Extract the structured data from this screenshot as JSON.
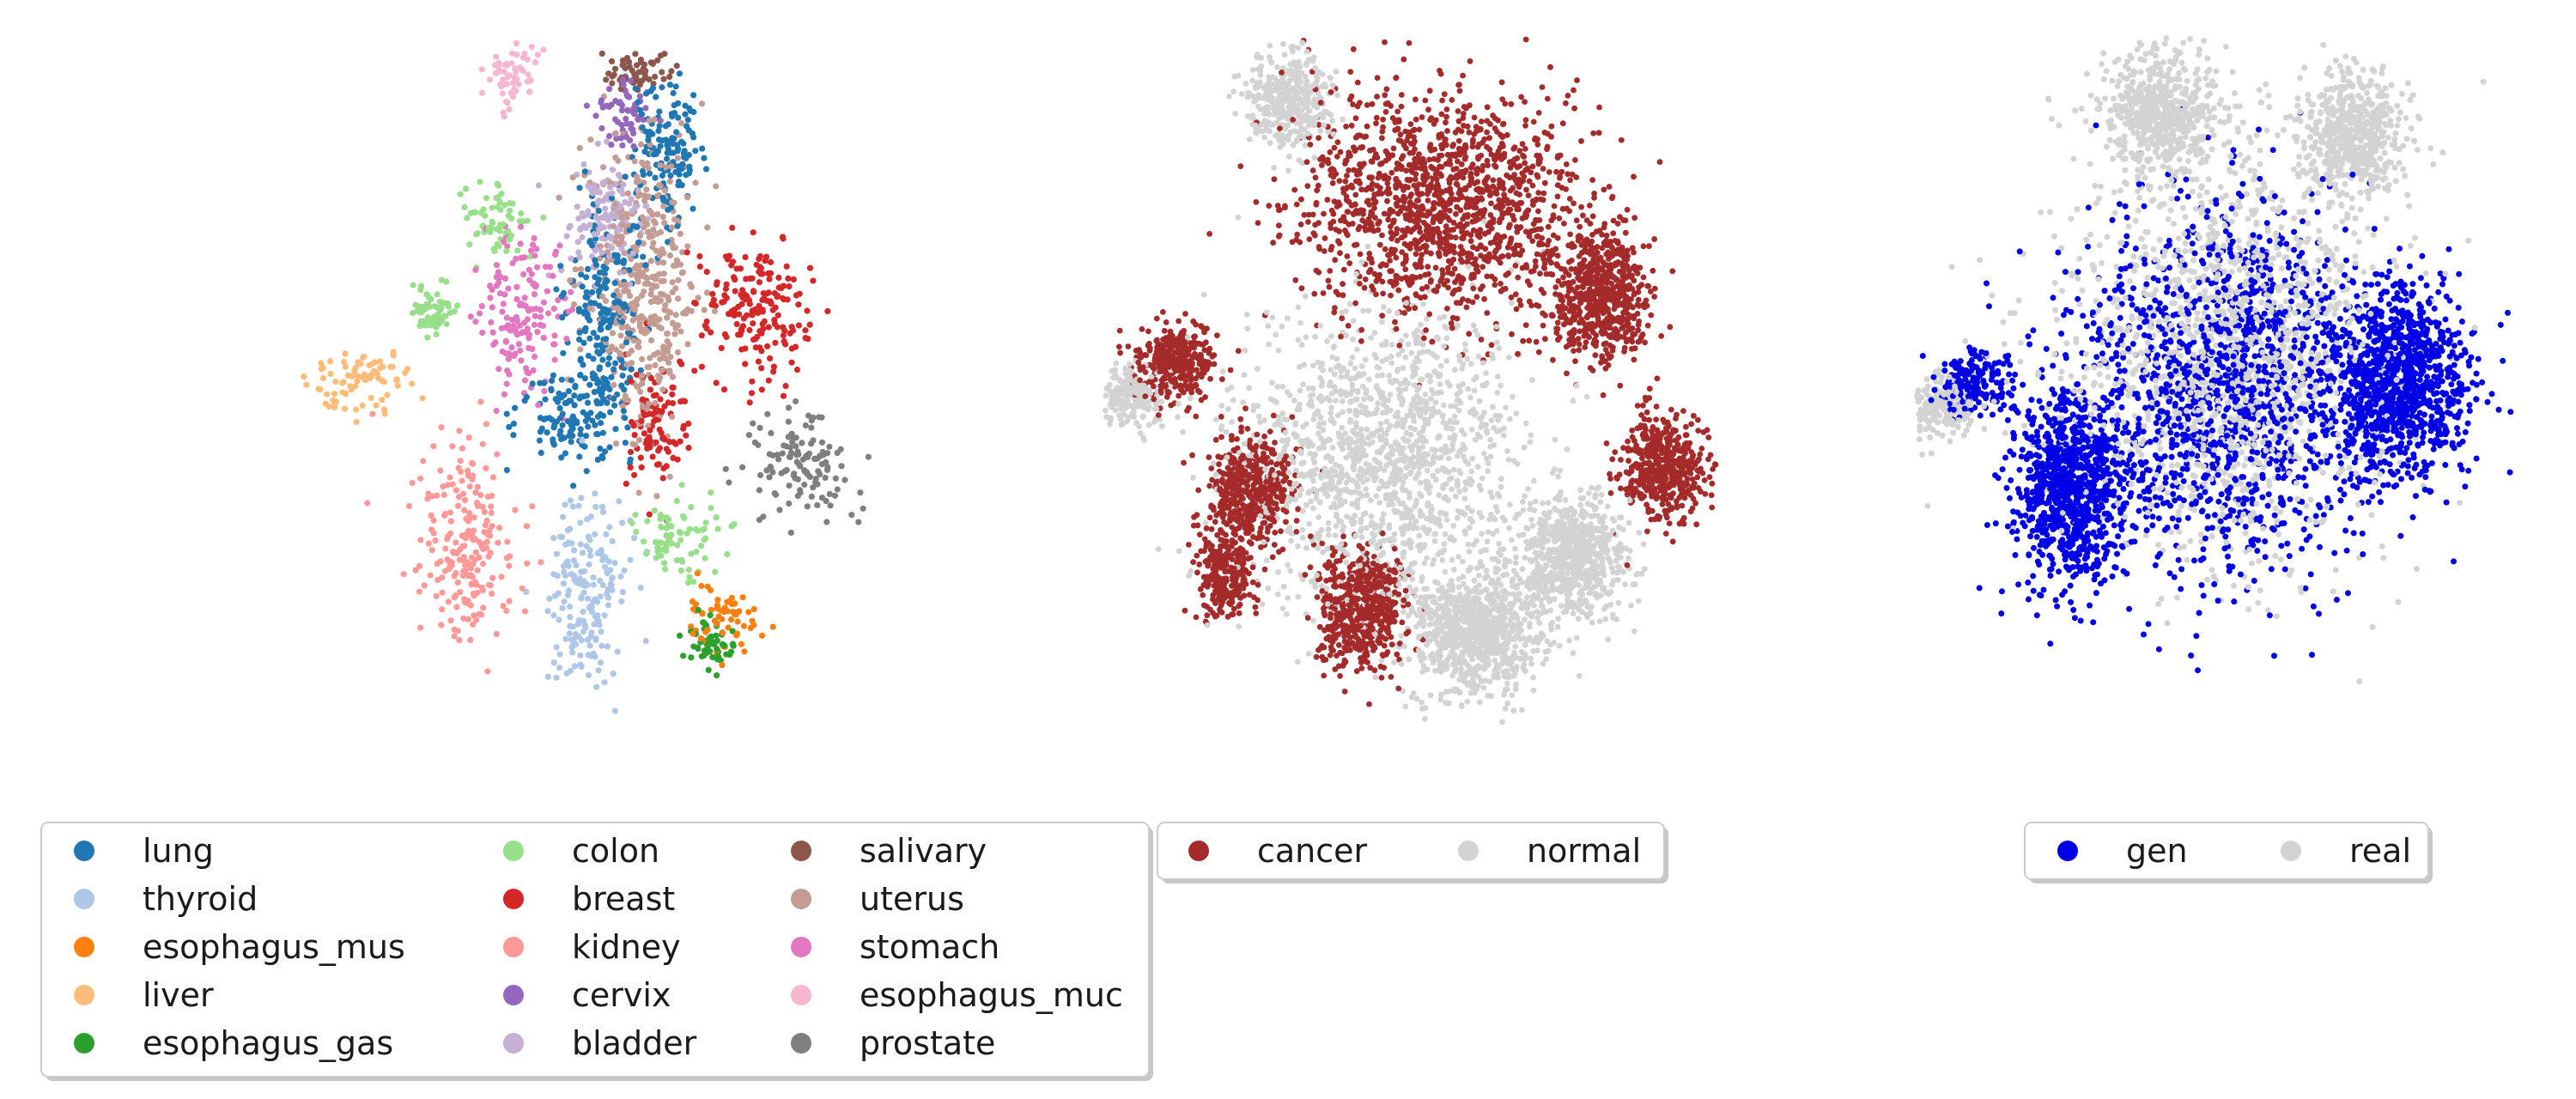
{
  "chart_data": [
    {
      "type": "scatter",
      "panel": "tissue",
      "title": "",
      "xlabel": "",
      "ylabel": "",
      "axes_visible": false,
      "grid": false,
      "legend_position": "bottom",
      "legend_columns": 3,
      "series": [
        {
          "name": "lung",
          "color": "#1f77b4",
          "clusters": [
            [
              0.47,
              0.55,
              0.08,
              0.07
            ],
            [
              0.52,
              0.4,
              0.05,
              0.14
            ],
            [
              0.62,
              0.18,
              0.06,
              0.1
            ]
          ]
        },
        {
          "name": "thyroid",
          "color": "#aec7e8",
          "clusters": [
            [
              0.49,
              0.8,
              0.06,
              0.12
            ]
          ]
        },
        {
          "name": "esophagus_mus",
          "color": "#ff7f0e",
          "clusters": [
            [
              0.71,
              0.84,
              0.05,
              0.05
            ]
          ]
        },
        {
          "name": "liver",
          "color": "#ffbb78",
          "clusters": [
            [
              0.13,
              0.5,
              0.08,
              0.04
            ]
          ]
        },
        {
          "name": "esophagus_gas",
          "color": "#2ca02c",
          "clusters": [
            [
              0.69,
              0.87,
              0.04,
              0.03
            ]
          ]
        },
        {
          "name": "colon",
          "color": "#98df8a",
          "clusters": [
            [
              0.35,
              0.27,
              0.05,
              0.05
            ],
            [
              0.63,
              0.72,
              0.06,
              0.05
            ],
            [
              0.25,
              0.4,
              0.03,
              0.03
            ]
          ]
        },
        {
          "name": "breast",
          "color": "#d62728",
          "clusters": [
            [
              0.76,
              0.4,
              0.08,
              0.09
            ],
            [
              0.6,
              0.55,
              0.05,
              0.08
            ]
          ]
        },
        {
          "name": "kidney",
          "color": "#ff9896",
          "clusters": [
            [
              0.3,
              0.73,
              0.07,
              0.12
            ]
          ]
        },
        {
          "name": "cervix",
          "color": "#9467bd",
          "clusters": [
            [
              0.55,
              0.12,
              0.04,
              0.05
            ]
          ]
        },
        {
          "name": "bladder",
          "color": "#c5b0d5",
          "clusters": [
            [
              0.52,
              0.27,
              0.06,
              0.09
            ]
          ]
        },
        {
          "name": "salivary",
          "color": "#8c564b",
          "clusters": [
            [
              0.57,
              0.06,
              0.05,
              0.03
            ]
          ]
        },
        {
          "name": "uterus",
          "color": "#c49c94",
          "clusters": [
            [
              0.58,
              0.35,
              0.08,
              0.2
            ]
          ]
        },
        {
          "name": "stomach",
          "color": "#e377c2",
          "clusters": [
            [
              0.39,
              0.4,
              0.06,
              0.1
            ]
          ]
        },
        {
          "name": "esophagus_muc",
          "color": "#f7b6d2",
          "clusters": [
            [
              0.37,
              0.07,
              0.04,
              0.05
            ]
          ]
        },
        {
          "name": "prostate",
          "color": "#7f7f7f",
          "clusters": [
            [
              0.84,
              0.62,
              0.07,
              0.07
            ]
          ]
        }
      ]
    },
    {
      "type": "scatter",
      "panel": "condition",
      "title": "",
      "xlabel": "",
      "ylabel": "",
      "axes_visible": false,
      "grid": false,
      "legend_position": "bottom",
      "legend_columns": 2,
      "series": [
        {
          "name": "cancer",
          "color": "#a52a2a",
          "clusters": [
            [
              0.55,
              0.25,
              0.2,
              0.15
            ],
            [
              0.8,
              0.38,
              0.07,
              0.08
            ],
            [
              0.12,
              0.47,
              0.06,
              0.05
            ],
            [
              0.24,
              0.65,
              0.06,
              0.07
            ],
            [
              0.9,
              0.62,
              0.06,
              0.07
            ],
            [
              0.42,
              0.82,
              0.06,
              0.08
            ],
            [
              0.2,
              0.77,
              0.04,
              0.06
            ]
          ]
        },
        {
          "name": "normal",
          "color": "#d3d3d3",
          "clusters": [
            [
              0.45,
              0.6,
              0.2,
              0.2
            ],
            [
              0.6,
              0.85,
              0.1,
              0.08
            ],
            [
              0.3,
              0.1,
              0.06,
              0.06
            ],
            [
              0.05,
              0.52,
              0.05,
              0.04
            ],
            [
              0.75,
              0.75,
              0.08,
              0.08
            ]
          ]
        }
      ]
    },
    {
      "type": "scatter",
      "panel": "source",
      "title": "",
      "xlabel": "",
      "ylabel": "",
      "axes_visible": false,
      "grid": false,
      "legend_position": "bottom",
      "legend_columns": 2,
      "series": [
        {
          "name": "gen",
          "color": "#0000e6",
          "clusters": [
            [
              0.5,
              0.5,
              0.22,
              0.24
            ],
            [
              0.25,
              0.65,
              0.08,
              0.12
            ],
            [
              0.78,
              0.5,
              0.1,
              0.12
            ],
            [
              0.1,
              0.5,
              0.05,
              0.04
            ]
          ]
        },
        {
          "name": "real",
          "color": "#d3d3d3",
          "clusters": [
            [
              0.5,
              0.45,
              0.25,
              0.28
            ],
            [
              0.4,
              0.12,
              0.08,
              0.08
            ],
            [
              0.7,
              0.15,
              0.08,
              0.08
            ],
            [
              0.05,
              0.53,
              0.05,
              0.04
            ]
          ]
        }
      ]
    }
  ]
}
